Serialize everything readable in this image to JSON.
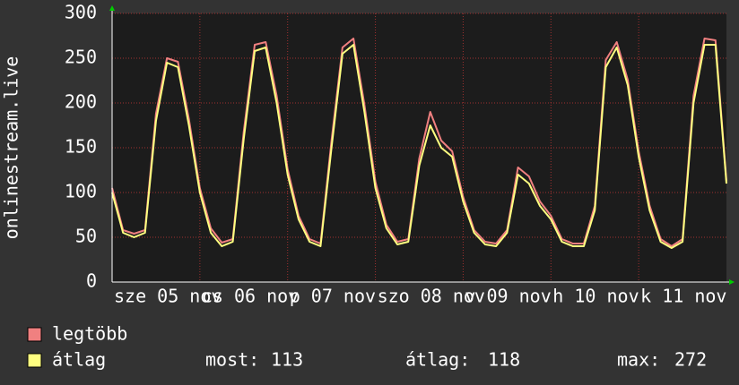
{
  "chart_data": {
    "type": "line",
    "y_label": "onlinestream.live",
    "x": [
      0,
      3,
      6,
      9,
      12,
      15,
      18,
      21,
      24,
      27,
      30,
      33,
      36,
      39,
      42,
      45,
      48,
      51,
      54,
      57,
      60,
      63,
      66,
      69,
      72,
      75,
      78,
      81,
      84,
      87,
      90,
      93,
      96,
      99,
      102,
      105,
      108,
      111,
      114,
      117,
      120,
      123,
      126,
      129,
      132,
      135,
      138,
      141,
      144,
      147,
      150,
      153,
      156,
      159,
      162,
      165,
      168
    ],
    "xlim": [
      0,
      168
    ],
    "xticks": [
      {
        "value": 0,
        "label": "sze 05 nov"
      },
      {
        "value": 24,
        "label": "cs 06 nov"
      },
      {
        "value": 48,
        "label": "p 07 nov"
      },
      {
        "value": 72,
        "label": "szo 08 nov"
      },
      {
        "value": 96,
        "label": "v 09 nov"
      },
      {
        "value": 120,
        "label": "h 10 nov"
      },
      {
        "value": 144,
        "label": "k 11 nov"
      }
    ],
    "ylim": [
      0,
      300
    ],
    "yticks": [
      0,
      50,
      100,
      150,
      200,
      250,
      300
    ],
    "grid": true,
    "series": [
      {
        "name": "legtöbb",
        "color": "#f08080",
        "values": [
          105,
          58,
          54,
          58,
          188,
          250,
          246,
          182,
          105,
          60,
          44,
          48,
          168,
          265,
          268,
          208,
          126,
          74,
          48,
          43,
          158,
          262,
          272,
          198,
          112,
          64,
          45,
          48,
          138,
          190,
          158,
          146,
          95,
          58,
          45,
          43,
          58,
          128,
          118,
          90,
          74,
          48,
          43,
          43,
          85,
          248,
          268,
          226,
          146,
          85,
          48,
          40,
          48,
          208,
          272,
          270,
          113
        ]
      },
      {
        "name": "átlag",
        "color": "#ffff80",
        "values": [
          100,
          55,
          50,
          55,
          180,
          245,
          240,
          175,
          100,
          55,
          40,
          45,
          160,
          258,
          262,
          200,
          120,
          70,
          45,
          40,
          150,
          255,
          265,
          190,
          105,
          60,
          42,
          45,
          130,
          175,
          150,
          140,
          90,
          55,
          42,
          40,
          55,
          120,
          110,
          85,
          70,
          45,
          40,
          40,
          80,
          240,
          262,
          220,
          140,
          80,
          45,
          38,
          45,
          200,
          265,
          265,
          110
        ]
      }
    ],
    "stats": [
      {
        "label": "most:",
        "value": 113
      },
      {
        "label": "átlag:",
        "value": 118
      },
      {
        "label": "max:",
        "value": 272
      }
    ]
  }
}
